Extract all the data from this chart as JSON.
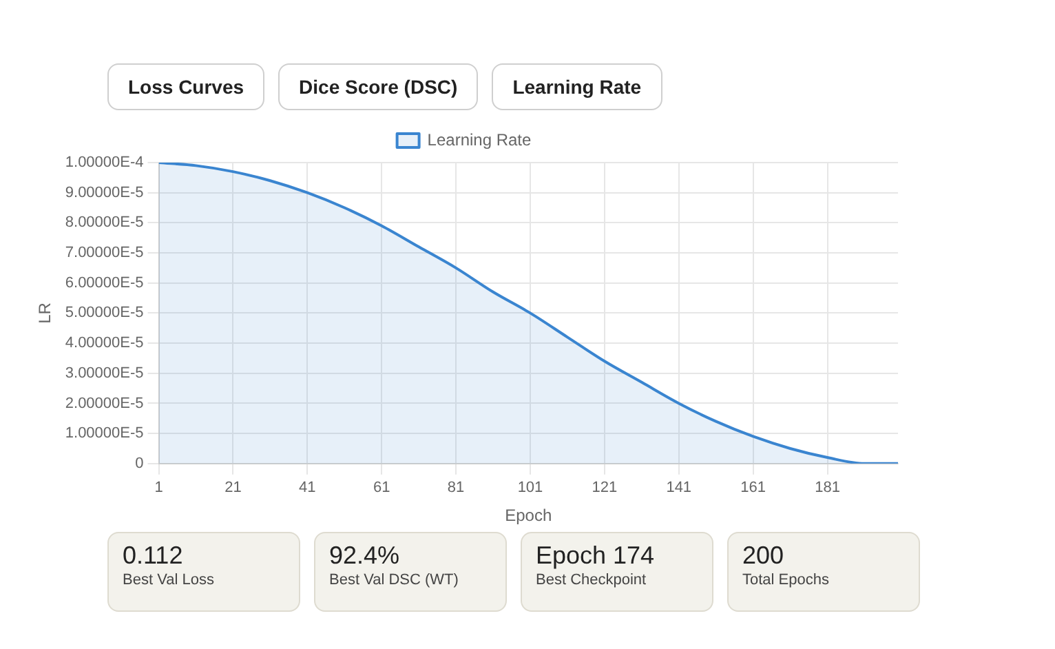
{
  "chart_data": [
    {
      "type": "other",
      "annotations": [
        "Loss Curves",
        "Dice Score (DSC)",
        "Learning Rate"
      ]
    },
    {
      "type": "area",
      "xlabel": "Epoch",
      "ylabel": "LR",
      "x": [
        1,
        11,
        21,
        31,
        41,
        51,
        61,
        71,
        81,
        91,
        101,
        111,
        121,
        131,
        141,
        151,
        161,
        171,
        181,
        191,
        200
      ],
      "series": [
        {
          "name": "Learning Rate",
          "color": "#3a85d0",
          "values": [
            0.0001,
            9.9e-05,
            9.7e-05,
            9.4e-05,
            9e-05,
            8.5e-05,
            7.9e-05,
            7.2e-05,
            6.5e-05,
            5.7e-05,
            5e-05,
            4.2e-05,
            3.4e-05,
            2.7e-05,
            2e-05,
            1.4e-05,
            9e-06,
            5e-06,
            2e-06,
            0,
            0
          ]
        }
      ],
      "xlim": [
        1,
        200
      ],
      "xticks": [
        1,
        21,
        41,
        61,
        81,
        101,
        121,
        141,
        161,
        181
      ],
      "ylim": [
        0,
        0.0001
      ],
      "yticks": [
        0,
        {
          "value": 1e-05,
          "label": "1.00000E-5"
        },
        {
          "value": 2e-05,
          "label": "2.00000E-5"
        },
        {
          "value": 3e-05,
          "label": "3.00000E-5"
        },
        {
          "value": 4e-05,
          "label": "4.00000E-5"
        },
        {
          "value": 5e-05,
          "label": "5.00000E-5"
        },
        {
          "value": 6e-05,
          "label": "6.00000E-5"
        },
        {
          "value": 7e-05,
          "label": "7.00000E-5"
        },
        {
          "value": 8e-05,
          "label": "8.00000E-5"
        },
        {
          "value": 9e-05,
          "label": "9.00000E-5"
        },
        {
          "value": 0.0001,
          "label": "1.00000E-4"
        }
      ],
      "grid": true,
      "legend": "top",
      "marker": "none",
      "line_style": "solid"
    },
    {
      "type": "other",
      "annotations": [
        "0.112",
        "Best Val Loss",
        "92.4%",
        "Best Val DSC (WT)",
        "Epoch 174",
        "Best Checkpoint",
        "200",
        "Total Epochs"
      ]
    }
  ]
}
